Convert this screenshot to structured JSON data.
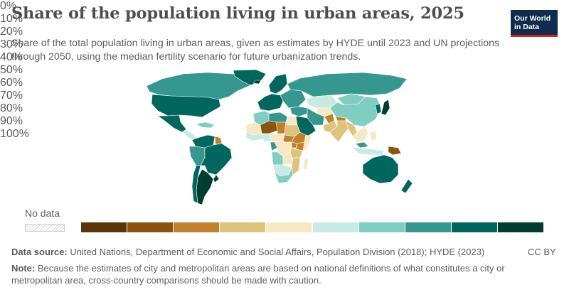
{
  "header": {
    "title": "Share of the population living in urban areas, 2025",
    "subtitle": "Share of the total population living in urban areas, given as estimates by HYDE until 2023 and UN projections through 2050, using the median fertility scenario for future urbanization trends."
  },
  "logo": {
    "line1": "Our World",
    "line2": "in Data"
  },
  "legend": {
    "no_data_label": "No data",
    "ticks": [
      "0%",
      "10%",
      "20%",
      "30%",
      "40%",
      "50%",
      "60%",
      "70%",
      "80%",
      "90%",
      "100%"
    ],
    "bins": [
      {
        "range": "0-10%",
        "color": "#5b3408"
      },
      {
        "range": "10-20%",
        "color": "#8a530f"
      },
      {
        "range": "20-30%",
        "color": "#bf812d"
      },
      {
        "range": "30-40%",
        "color": "#dfc27d"
      },
      {
        "range": "40-50%",
        "color": "#f6e8c3"
      },
      {
        "range": "50-60%",
        "color": "#c7eae5"
      },
      {
        "range": "60-70%",
        "color": "#80cdc1"
      },
      {
        "range": "70-80%",
        "color": "#35978f"
      },
      {
        "range": "80-90%",
        "color": "#01665e"
      },
      {
        "range": "90-100%",
        "color": "#003c30"
      }
    ]
  },
  "regions": [
    {
      "name": "Canada",
      "bin": 7
    },
    {
      "name": "United States",
      "bin": 8
    },
    {
      "name": "Greenland",
      "bin": 8
    },
    {
      "name": "Mexico",
      "bin": 8
    },
    {
      "name": "Central America",
      "bin": 5
    },
    {
      "name": "Caribbean",
      "bin": 6
    },
    {
      "name": "Colombia / Venezuela",
      "bin": 8
    },
    {
      "name": "Guyana",
      "bin": 2
    },
    {
      "name": "Brazil",
      "bin": 8
    },
    {
      "name": "Andean South America",
      "bin": 7
    },
    {
      "name": "Argentina",
      "bin": 9
    },
    {
      "name": "Chile",
      "bin": 8
    },
    {
      "name": "Uruguay",
      "bin": 9
    },
    {
      "name": "Iceland",
      "bin": 9
    },
    {
      "name": "Western Europe",
      "bin": 8
    },
    {
      "name": "Scandinavia",
      "bin": 8
    },
    {
      "name": "Eastern Europe",
      "bin": 7
    },
    {
      "name": "Russia",
      "bin": 7
    },
    {
      "name": "Kazakhstan",
      "bin": 5
    },
    {
      "name": "Central Asia",
      "bin": 4
    },
    {
      "name": "Mongolia",
      "bin": 6
    },
    {
      "name": "China",
      "bin": 6
    },
    {
      "name": "Japan",
      "bin": 9
    },
    {
      "name": "Korea",
      "bin": 8
    },
    {
      "name": "Turkey / Levant",
      "bin": 7
    },
    {
      "name": "Arabian Peninsula",
      "bin": 8
    },
    {
      "name": "Iran",
      "bin": 7
    },
    {
      "name": "Afghanistan",
      "bin": 2
    },
    {
      "name": "Pakistan",
      "bin": 3
    },
    {
      "name": "India",
      "bin": 3
    },
    {
      "name": "Nepal / Bhutan",
      "bin": 2
    },
    {
      "name": "Bangladesh / Myanmar",
      "bin": 3
    },
    {
      "name": "Thailand / Indochina",
      "bin": 4
    },
    {
      "name": "Malaysia",
      "bin": 7
    },
    {
      "name": "Indonesia",
      "bin": 5
    },
    {
      "name": "Philippines",
      "bin": 4
    },
    {
      "name": "Papua New Guinea",
      "bin": 1
    },
    {
      "name": "Australia",
      "bin": 8
    },
    {
      "name": "New Zealand",
      "bin": 8
    },
    {
      "name": "North Africa (Maghreb)",
      "bin": 6
    },
    {
      "name": "Libya / Algeria",
      "bin": 7
    },
    {
      "name": "Egypt",
      "bin": 4
    },
    {
      "name": "Sahel West",
      "bin": 4
    },
    {
      "name": "Niger",
      "bin": 1
    },
    {
      "name": "Chad",
      "bin": 2
    },
    {
      "name": "Sudan",
      "bin": 3
    },
    {
      "name": "South Sudan",
      "bin": 2
    },
    {
      "name": "Ethiopia",
      "bin": 2
    },
    {
      "name": "Somalia",
      "bin": 4
    },
    {
      "name": "Kenya",
      "bin": 2
    },
    {
      "name": "Uganda",
      "bin": 2
    },
    {
      "name": "Tanzania",
      "bin": 3
    },
    {
      "name": "West African coast",
      "bin": 5
    },
    {
      "name": "Nigeria",
      "bin": 5
    },
    {
      "name": "Cameroon / CAR",
      "bin": 4
    },
    {
      "name": "Gabon / Congo",
      "bin": 7
    },
    {
      "name": "DR Congo",
      "bin": 4
    },
    {
      "name": "Angola",
      "bin": 6
    },
    {
      "name": "Zambia",
      "bin": 4
    },
    {
      "name": "Mozambique / Malawi",
      "bin": 3
    },
    {
      "name": "Namibia / Botswana",
      "bin": 5
    },
    {
      "name": "South Africa",
      "bin": 6
    },
    {
      "name": "Madagascar",
      "bin": 4
    }
  ],
  "footer": {
    "source_label": "Data source:",
    "source_text": "United Nations, Department of Economic and Social Affairs, Population Division (2018); HYDE (2023)",
    "license": "CC BY",
    "note_label": "Note:",
    "note_text": "Because the estimates of city and metropolitan areas are based on national definitions of what constitutes a city or metropolitan area, cross-country comparisons should be made with caution."
  }
}
